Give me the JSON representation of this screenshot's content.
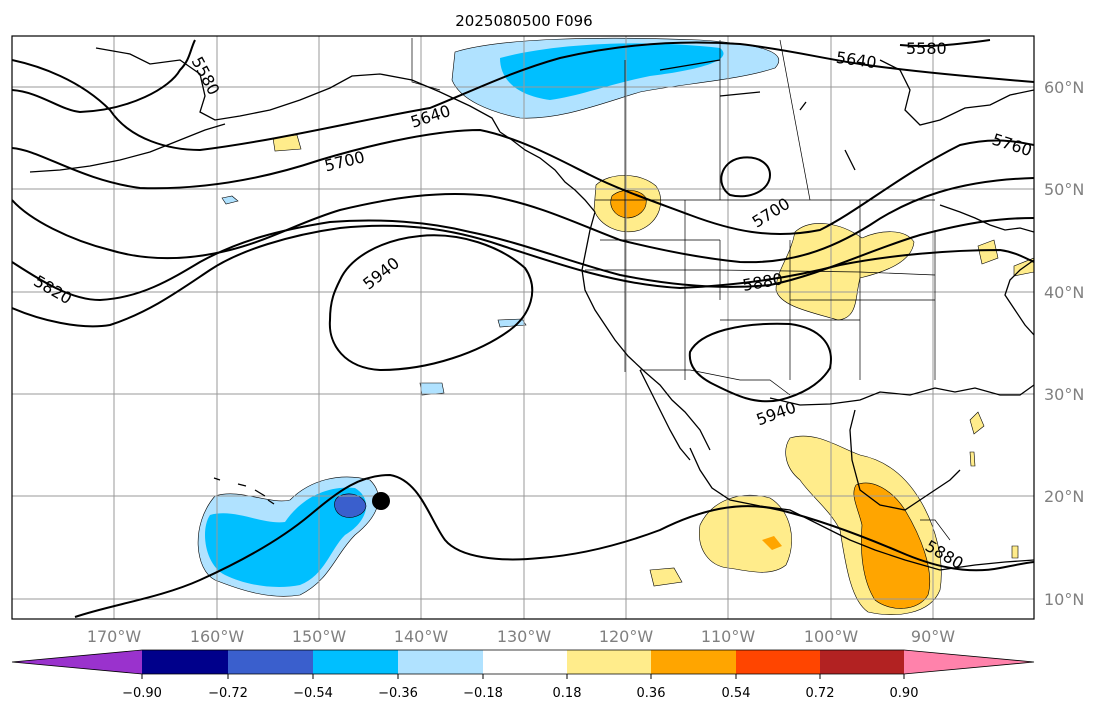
{
  "map": {
    "title": "2025080500 F096",
    "lon_labels": [
      "170°W",
      "160°W",
      "150°W",
      "140°W",
      "130°W",
      "120°W",
      "110°W",
      "100°W",
      "90°W"
    ],
    "lat_labels": [
      "60°N",
      "50°N",
      "40°N",
      "30°N",
      "20°N",
      "10°N"
    ],
    "contour_labels": [
      "5580",
      "5580",
      "5640",
      "5640",
      "5700",
      "5700",
      "5760",
      "5820",
      "5880",
      "5880",
      "5940",
      "5940"
    ],
    "colorbar": {
      "ticks": [
        "−0.90",
        "−0.72",
        "−0.54",
        "−0.36",
        "−0.18",
        "0.18",
        "0.36",
        "0.54",
        "0.72",
        "0.90"
      ],
      "colors": [
        "#9a32cd",
        "#00008b",
        "#3a5fcd",
        "#00bfff",
        "#b0e2ff",
        "#ffffff",
        "#ffec8b",
        "#ffa500",
        "#ff4500",
        "#b22222",
        "#ff82ab"
      ]
    },
    "colors": {
      "neg_light": "#b0e2ff",
      "neg_mid": "#00bfff",
      "neg_dark": "#3a5fcd",
      "pos_light": "#ffec8b",
      "pos_mid": "#ffa500"
    }
  }
}
